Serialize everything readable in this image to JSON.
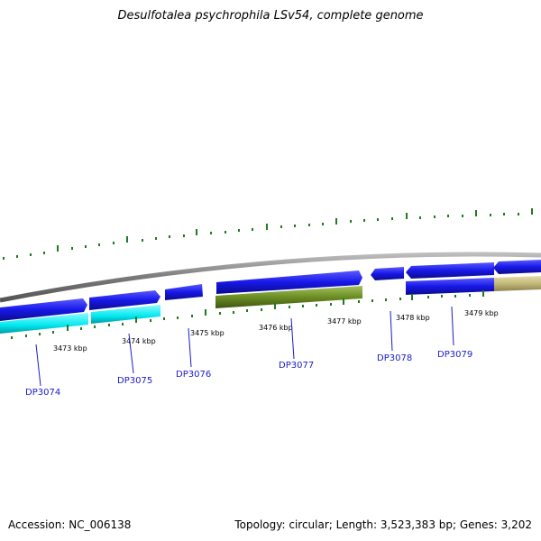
{
  "title": "Desulfotalea psychrophila LSv54, complete genome",
  "footer": {
    "accession": "Accession: NC_006138",
    "summary": "Topology: circular; Length: 3,523,383 bp; Genes: 3,202"
  },
  "colors": {
    "backbone": "#8c8c8c",
    "tick": "#1e7a1e",
    "forward_cds": "#1a1ae6",
    "reverse_cds": "#1a1ae6",
    "cyan_feature": "#00e5ee",
    "olive_feature": "#6b8e23",
    "tan_feature": "#c2b87a",
    "label_line": "#1a1acd"
  },
  "kbp_labels": [
    "3473 kbp",
    "3474 kbp",
    "3475 kbp",
    "3476 kbp",
    "3477 kbp",
    "3478 kbp",
    "3479 kbp"
  ],
  "genes": [
    "DP3074",
    "DP3075",
    "DP3076",
    "DP3077",
    "DP3078",
    "DP3079"
  ]
}
